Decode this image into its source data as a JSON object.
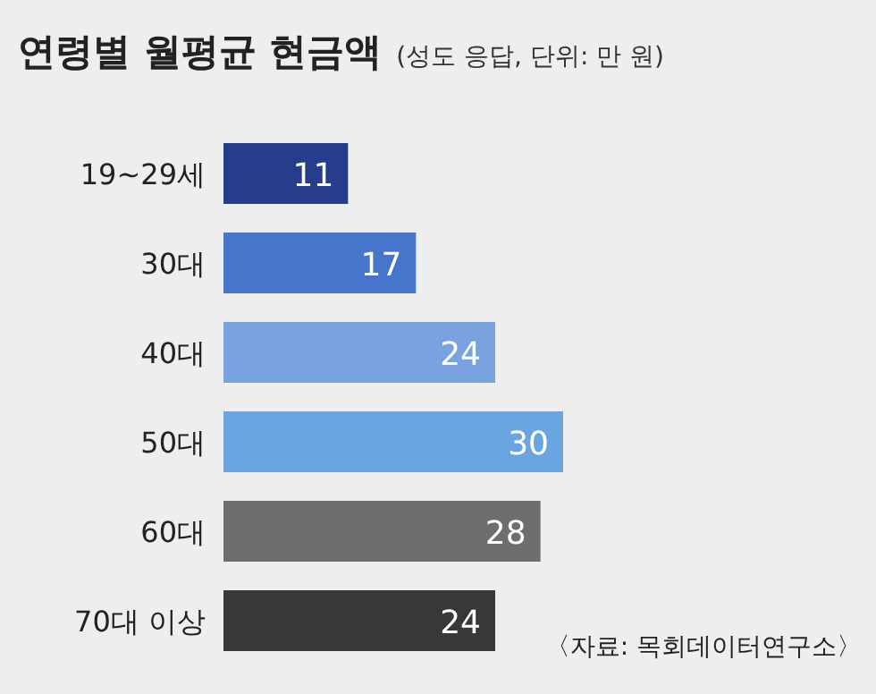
{
  "chart_data": {
    "type": "bar",
    "orientation": "horizontal",
    "title": "연령별 월평균 현금액",
    "subtitle": "(성도 응답, 단위: 만 원)",
    "categories": [
      "19~29세",
      "30대",
      "40대",
      "50대",
      "60대",
      "70대 이상"
    ],
    "values": [
      11,
      17,
      24,
      30,
      28,
      24
    ],
    "colors": [
      "#263d8c",
      "#4576cc",
      "#7aa2df",
      "#6aa5e0",
      "#6e6e70",
      "#38383a"
    ],
    "data_labels": true,
    "annotations": [
      "〈자료: 목회데이터연구소〉"
    ]
  }
}
